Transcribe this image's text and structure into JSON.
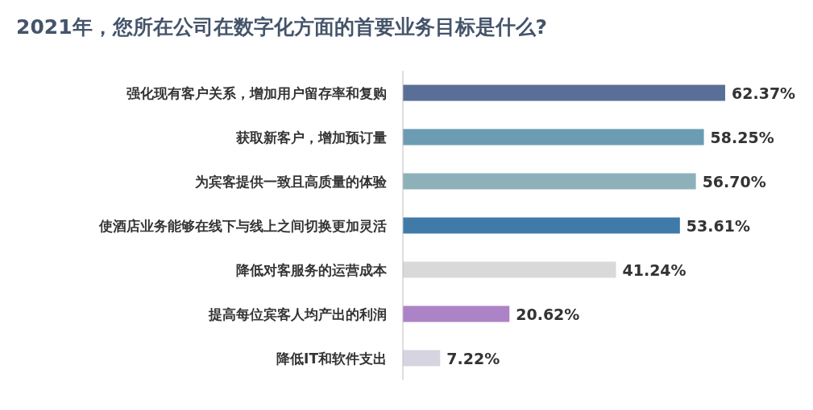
{
  "chart_data": {
    "type": "bar",
    "orientation": "horizontal",
    "title": "2021年，您所在公司在数字化方面的首要业务目标是什么?",
    "categories": [
      "强化现有客户关系，增加用户留存率和复购",
      "获取新客户，增加预订量",
      "为宾客提供一致且高质量的体验",
      "使酒店业务能够在线下与线上之间切换更加灵活",
      "降低对客服务的运营成本",
      "提高每位宾客人均产出的利润",
      "降低IT和软件支出"
    ],
    "values": [
      62.37,
      58.25,
      56.7,
      53.61,
      41.24,
      20.62,
      7.22
    ],
    "colors": [
      "#5a6f97",
      "#6b9cb3",
      "#8eb1b9",
      "#3f7aa9",
      "#d9d9d9",
      "#ac83c6",
      "#d6d4e0"
    ],
    "value_labels": [
      "62.37%",
      "58.25%",
      "56.70%",
      "53.61%",
      "41.24%",
      "20.62%",
      "7.22%"
    ]
  }
}
